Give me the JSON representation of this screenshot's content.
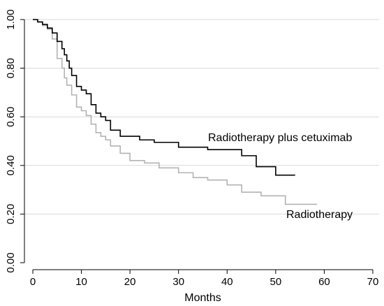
{
  "chart_data": {
    "type": "line",
    "step": true,
    "title": "",
    "xlabel": "Months",
    "ylabel": "",
    "xlim": [
      0,
      70
    ],
    "ylim": [
      0,
      1
    ],
    "x_ticks": [
      0,
      10,
      20,
      30,
      40,
      50,
      60,
      70
    ],
    "y_ticks": [
      0,
      0.2,
      0.4,
      0.6,
      0.8,
      1.0
    ],
    "x_tick_labels": [
      "0",
      "10",
      "20",
      "30",
      "40",
      "50",
      "60",
      "70"
    ],
    "y_tick_labels": [
      "0.00",
      "0.20",
      "0.40",
      "0.60",
      "0.80",
      "1.00"
    ],
    "grid": "horizontal",
    "grid_color": "#d9d9d9",
    "series": [
      {
        "name": "Radiotherapy plus cetuximab",
        "color": "#000000",
        "points": [
          [
            0,
            1.0
          ],
          [
            1,
            0.99
          ],
          [
            2,
            0.98
          ],
          [
            3,
            0.965
          ],
          [
            4,
            0.945
          ],
          [
            5,
            0.91
          ],
          [
            6,
            0.88
          ],
          [
            6.5,
            0.855
          ],
          [
            7,
            0.83
          ],
          [
            7.5,
            0.8
          ],
          [
            8,
            0.77
          ],
          [
            9,
            0.725
          ],
          [
            10,
            0.71
          ],
          [
            11,
            0.695
          ],
          [
            12,
            0.65
          ],
          [
            13,
            0.615
          ],
          [
            14,
            0.6
          ],
          [
            15,
            0.585
          ],
          [
            16,
            0.545
          ],
          [
            18,
            0.52
          ],
          [
            22,
            0.505
          ],
          [
            25,
            0.495
          ],
          [
            30,
            0.475
          ],
          [
            36,
            0.465
          ],
          [
            43,
            0.44
          ],
          [
            46,
            0.395
          ],
          [
            50,
            0.36
          ],
          [
            54,
            0.36
          ]
        ]
      },
      {
        "name": "Radiotherapy",
        "color": "#b3b3b3",
        "points": [
          [
            0,
            1.0
          ],
          [
            1,
            0.99
          ],
          [
            2,
            0.975
          ],
          [
            3,
            0.96
          ],
          [
            4,
            0.92
          ],
          [
            5,
            0.84
          ],
          [
            6,
            0.8
          ],
          [
            6.5,
            0.76
          ],
          [
            7,
            0.73
          ],
          [
            8,
            0.69
          ],
          [
            9,
            0.64
          ],
          [
            10,
            0.625
          ],
          [
            11,
            0.605
          ],
          [
            12,
            0.57
          ],
          [
            13,
            0.535
          ],
          [
            14,
            0.52
          ],
          [
            15,
            0.505
          ],
          [
            16,
            0.48
          ],
          [
            18,
            0.45
          ],
          [
            20,
            0.42
          ],
          [
            23,
            0.41
          ],
          [
            26,
            0.39
          ],
          [
            30,
            0.37
          ],
          [
            33,
            0.35
          ],
          [
            36,
            0.34
          ],
          [
            40,
            0.32
          ],
          [
            43,
            0.29
          ],
          [
            47,
            0.275
          ],
          [
            52,
            0.24
          ],
          [
            58.5,
            0.24
          ]
        ]
      }
    ],
    "annotations": [
      {
        "text": "Radiotherapy plus cetuximab",
        "series": 0
      },
      {
        "text": "Radiotherapy",
        "series": 1
      }
    ]
  }
}
